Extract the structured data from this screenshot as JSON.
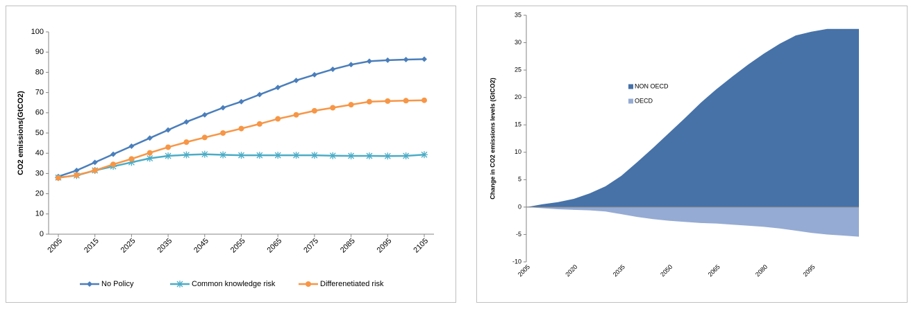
{
  "chart_data": [
    {
      "type": "line",
      "y_label": "CO2 emissions(GtCO2)",
      "x": [
        2005,
        2010,
        2015,
        2020,
        2025,
        2030,
        2035,
        2040,
        2045,
        2050,
        2055,
        2060,
        2065,
        2070,
        2075,
        2080,
        2085,
        2090,
        2095,
        2100,
        2105
      ],
      "xticks": [
        2005,
        2015,
        2025,
        2035,
        2045,
        2055,
        2065,
        2075,
        2085,
        2095,
        2105
      ],
      "xlim": [
        2005,
        2105
      ],
      "ylim": [
        0,
        100
      ],
      "yticks": [
        0,
        10,
        20,
        30,
        40,
        50,
        60,
        70,
        80,
        90,
        100
      ],
      "legend": "bottom",
      "series": [
        {
          "name": "No Policy",
          "color": "#4a7ebb",
          "marker": "diamond",
          "values": [
            28.5,
            31.5,
            35.5,
            39.5,
            43.5,
            47.5,
            51.5,
            55.5,
            59,
            62.5,
            65.5,
            69,
            72.5,
            76,
            78.8,
            81.5,
            83.8,
            85.5,
            86,
            86.3,
            86.5
          ]
        },
        {
          "name": "Common knowledge  risk",
          "color": "#4bacc6",
          "marker": "star",
          "values": [
            28,
            29,
            31.5,
            33.5,
            35.5,
            37.5,
            38.7,
            39.2,
            39.5,
            39.2,
            39,
            39,
            39,
            39,
            39,
            38.8,
            38.7,
            38.7,
            38.6,
            38.7,
            39.3
          ]
        },
        {
          "name": "Differenetiated risk",
          "color": "#f79646",
          "marker": "circle",
          "values": [
            27.8,
            29.2,
            31.5,
            34.5,
            37.2,
            40.2,
            43,
            45.5,
            47.8,
            50,
            52.2,
            54.5,
            57,
            59,
            61,
            62.5,
            64,
            65.5,
            65.8,
            66,
            66.2
          ]
        }
      ]
    },
    {
      "type": "area",
      "y_label": "Change in CO2 emissions levels (GtCO2)",
      "x": [
        2005,
        2010,
        2015,
        2020,
        2025,
        2030,
        2035,
        2040,
        2045,
        2050,
        2055,
        2060,
        2065,
        2070,
        2075,
        2080,
        2085,
        2090,
        2095,
        2100,
        2105,
        2110
      ],
      "xticks": [
        2005,
        2020,
        2035,
        2050,
        2065,
        2080,
        2095
      ],
      "xlim": [
        2005,
        2110
      ],
      "ylim": [
        -10,
        35
      ],
      "yticks": [
        -10,
        -5,
        0,
        5,
        10,
        15,
        20,
        25,
        30,
        35
      ],
      "legend": "left",
      "series": [
        {
          "name": "NON OECD",
          "color": "#4672a8",
          "values": [
            0,
            0.5,
            0.9,
            1.5,
            2.5,
            3.8,
            5.7,
            8.2,
            10.8,
            13.5,
            16.2,
            19,
            21.5,
            23.8,
            26,
            28,
            29.8,
            31.3,
            32,
            32.5,
            32.5,
            32.5
          ]
        },
        {
          "name": "OECD",
          "color": "#95abd3",
          "values": [
            0,
            -0.2,
            -0.4,
            -0.5,
            -0.6,
            -0.8,
            -1.3,
            -1.8,
            -2.2,
            -2.5,
            -2.7,
            -2.9,
            -3.0,
            -3.2,
            -3.4,
            -3.6,
            -3.9,
            -4.3,
            -4.7,
            -5.0,
            -5.2,
            -5.4
          ]
        }
      ]
    }
  ]
}
